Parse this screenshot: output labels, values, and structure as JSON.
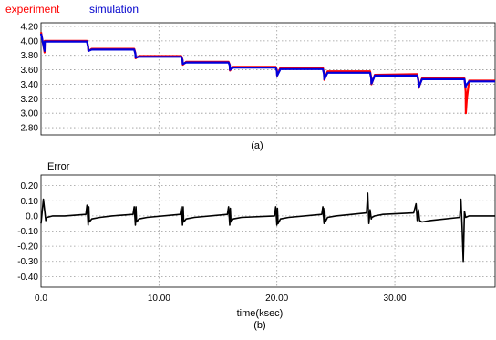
{
  "chart_data": [
    {
      "type": "line",
      "panel_label": "(a)",
      "legend_placement": "top-left",
      "grid": true,
      "xlim": [
        0,
        38.5
      ],
      "ylim": [
        2.7,
        4.25
      ],
      "yticks": [
        "4.20",
        "4.00",
        "3.80",
        "3.60",
        "3.40",
        "3.20",
        "3.00",
        "2.80"
      ],
      "ytick_values": [
        4.2,
        4.0,
        3.8,
        3.6,
        3.4,
        3.2,
        3.0,
        2.8
      ],
      "series": [
        {
          "name": "experiment",
          "color": "#ff0000",
          "x": [
            0.0,
            0.3,
            0.32,
            0.5,
            3.9,
            4.0,
            4.02,
            4.3,
            7.9,
            8.0,
            8.02,
            8.3,
            11.9,
            12.0,
            12.02,
            12.3,
            15.9,
            16.0,
            16.02,
            16.3,
            19.9,
            20.0,
            20.02,
            20.3,
            23.9,
            24.0,
            24.02,
            24.3,
            27.9,
            28.0,
            28.02,
            28.3,
            31.9,
            32.0,
            32.02,
            32.3,
            35.9,
            36.0,
            36.02,
            36.1,
            36.3,
            38.5
          ],
          "y": [
            4.12,
            3.84,
            4.0,
            4.0,
            4.0,
            3.92,
            3.86,
            3.89,
            3.89,
            3.83,
            3.76,
            3.79,
            3.79,
            3.74,
            3.67,
            3.71,
            3.71,
            3.67,
            3.59,
            3.64,
            3.64,
            3.6,
            3.52,
            3.63,
            3.63,
            3.55,
            3.46,
            3.58,
            3.58,
            3.49,
            3.4,
            3.53,
            3.54,
            3.46,
            3.35,
            3.48,
            3.48,
            3.3,
            3.0,
            3.2,
            3.45,
            3.45
          ]
        },
        {
          "name": "simulation",
          "color": "#0000dd",
          "x": [
            0.0,
            0.3,
            0.32,
            0.5,
            3.9,
            4.0,
            4.02,
            4.3,
            7.9,
            8.0,
            8.02,
            8.3,
            11.9,
            12.0,
            12.02,
            12.3,
            15.9,
            16.0,
            16.02,
            16.3,
            19.9,
            20.0,
            20.02,
            20.3,
            23.9,
            24.0,
            24.02,
            24.3,
            27.9,
            28.0,
            28.02,
            28.3,
            31.9,
            32.0,
            32.02,
            32.3,
            35.9,
            36.0,
            36.02,
            36.3,
            38.5
          ],
          "y": [
            4.1,
            3.86,
            3.99,
            3.99,
            3.99,
            3.91,
            3.86,
            3.88,
            3.88,
            3.82,
            3.77,
            3.78,
            3.78,
            3.73,
            3.68,
            3.7,
            3.7,
            3.66,
            3.6,
            3.63,
            3.63,
            3.58,
            3.52,
            3.61,
            3.61,
            3.54,
            3.47,
            3.56,
            3.56,
            3.48,
            3.41,
            3.52,
            3.52,
            3.45,
            3.36,
            3.47,
            3.47,
            3.36,
            3.38,
            3.44,
            3.44
          ]
        }
      ]
    },
    {
      "type": "line",
      "title": "Error",
      "panel_label": "(b)",
      "xlabel": "time(ksec)",
      "grid": true,
      "xlim": [
        0,
        38.5
      ],
      "ylim": [
        -0.47,
        0.27
      ],
      "xticks": [
        "0.0",
        "10.00",
        "20.00",
        "30.00"
      ],
      "xtick_values": [
        0,
        10,
        20,
        30
      ],
      "yticks": [
        "0.20",
        "0.10",
        "0.0",
        "-0.10",
        "-0.20",
        "-0.30",
        "-0.40"
      ],
      "ytick_values": [
        0.2,
        0.1,
        0.0,
        -0.1,
        -0.2,
        -0.3,
        -0.4
      ],
      "series": [
        {
          "name": "",
          "color": "#000000",
          "x": [
            0.0,
            0.2,
            0.4,
            0.5,
            1.0,
            2.0,
            3.8,
            3.9,
            4.0,
            4.05,
            4.1,
            4.3,
            5.0,
            6.0,
            7.8,
            7.9,
            8.0,
            8.05,
            8.1,
            8.3,
            9.0,
            11.8,
            11.9,
            12.0,
            12.05,
            12.1,
            12.3,
            13.0,
            15.8,
            15.9,
            16.0,
            16.05,
            16.1,
            16.3,
            17.0,
            19.8,
            19.9,
            20.0,
            20.05,
            20.1,
            20.3,
            21.0,
            23.8,
            23.9,
            24.0,
            24.05,
            24.1,
            24.3,
            25.0,
            27.6,
            27.7,
            27.8,
            27.9,
            28.0,
            28.05,
            28.3,
            29.0,
            31.6,
            31.8,
            31.9,
            32.0,
            32.1,
            32.3,
            33.0,
            35.5,
            35.6,
            35.7,
            35.8,
            35.9,
            36.0,
            36.3,
            37.0,
            38.5
          ],
          "y": [
            -0.05,
            0.11,
            -0.03,
            -0.01,
            0.0,
            0.0,
            0.01,
            0.07,
            -0.06,
            0.06,
            -0.04,
            -0.02,
            -0.01,
            0.0,
            0.01,
            0.06,
            -0.06,
            0.06,
            -0.04,
            -0.02,
            -0.01,
            0.01,
            0.06,
            -0.06,
            0.06,
            -0.04,
            -0.02,
            -0.01,
            0.01,
            0.06,
            -0.06,
            0.05,
            -0.04,
            -0.02,
            -0.01,
            0.0,
            0.06,
            -0.06,
            0.05,
            -0.05,
            -0.02,
            -0.01,
            0.01,
            0.06,
            -0.05,
            0.05,
            -0.04,
            -0.01,
            0.0,
            0.02,
            0.15,
            -0.05,
            0.04,
            -0.02,
            -0.01,
            0.0,
            0.01,
            0.02,
            0.08,
            -0.03,
            0.04,
            -0.03,
            -0.04,
            -0.03,
            -0.01,
            0.11,
            -0.07,
            -0.3,
            0.03,
            -0.01,
            0.0,
            0.0,
            0.0
          ]
        }
      ]
    }
  ]
}
